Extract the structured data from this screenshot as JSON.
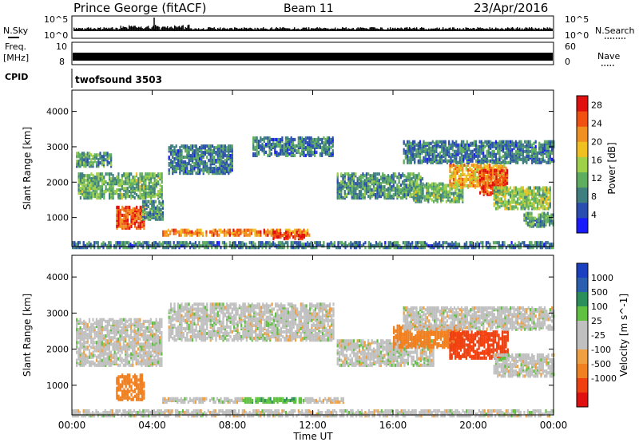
{
  "header": {
    "title": "Prince George (fitACF)",
    "beam": "Beam 11",
    "date": "23/Apr/2016"
  },
  "panels": {
    "nsky": {
      "label": "N.Sky",
      "left_ticks": [
        "10^5",
        "10^0"
      ]
    },
    "nsearch": {
      "label": "N.Search",
      "right_ticks": [
        "10^5",
        "10^0"
      ]
    },
    "freq": {
      "label_top": "Freq.",
      "label_unit": "[MHz]",
      "left_ticks": [
        "10",
        "8"
      ]
    },
    "nave": {
      "label": "Nave",
      "right_ticks": [
        "60",
        "0"
      ]
    },
    "cpid": {
      "label": "CPID",
      "value": "twofsound 3503"
    }
  },
  "colors": {
    "power_scale": [
      "#1a1aff",
      "#2a4db0",
      "#3f7f7f",
      "#5fae5f",
      "#9fd04a",
      "#f0c020",
      "#f09020",
      "#f05010",
      "#e01010"
    ],
    "velocity_scale": [
      "#e01010",
      "#f04010",
      "#f08020",
      "#f0a040",
      "#c0c0c0",
      "#c0c0c0",
      "#60c040",
      "#2a8f5a",
      "#2a5fb0",
      "#1a3fc0"
    ],
    "ground_scatter": "#b8b8b8"
  },
  "chart_data": [
    {
      "type": "heatmap",
      "panel": "power",
      "ylabel": "Slant Range [km]",
      "xlabel": "Time UT",
      "x_ticks": [
        "00:00",
        "04:00",
        "08:00",
        "12:00",
        "16:00",
        "20:00",
        "00:00"
      ],
      "xlim_hours": [
        0,
        24
      ],
      "ylim_km": [
        180,
        4600
      ],
      "y_ticks": [
        1000,
        2000,
        3000,
        4000
      ],
      "colorbar": {
        "label": "Power [dB]",
        "ticks": [
          4,
          8,
          12,
          16,
          20,
          24,
          28
        ],
        "range": [
          0,
          30
        ]
      },
      "regions": [
        {
          "t0": 0.2,
          "t1": 2.0,
          "r0": 2500,
          "r1": 2900,
          "value": 10
        },
        {
          "t0": 0.3,
          "t1": 4.5,
          "r0": 1600,
          "r1": 2300,
          "value": 12
        },
        {
          "t0": 2.2,
          "t1": 3.6,
          "r0": 750,
          "r1": 1350,
          "value": 25
        },
        {
          "t0": 3.5,
          "t1": 4.5,
          "r0": 1000,
          "r1": 1500,
          "value": 10
        },
        {
          "t0": 4.5,
          "t1": 11.8,
          "r0": 550,
          "r1": 700,
          "value": 22
        },
        {
          "t0": 10.0,
          "t1": 11.6,
          "r0": 450,
          "r1": 650,
          "value": 28
        },
        {
          "t0": 4.8,
          "t1": 8.0,
          "r0": 2300,
          "r1": 3100,
          "value": 8
        },
        {
          "t0": 9.0,
          "t1": 13.0,
          "r0": 2800,
          "r1": 3300,
          "value": 8
        },
        {
          "t0": 13.2,
          "t1": 17.5,
          "r0": 1600,
          "r1": 2300,
          "value": 10
        },
        {
          "t0": 17.0,
          "t1": 19.5,
          "r0": 1500,
          "r1": 2000,
          "value": 12
        },
        {
          "t0": 18.8,
          "t1": 21.6,
          "r0": 1900,
          "r1": 2550,
          "value": 20
        },
        {
          "t0": 20.3,
          "t1": 21.7,
          "r0": 1700,
          "r1": 2400,
          "value": 26
        },
        {
          "t0": 21.0,
          "t1": 23.8,
          "r0": 1300,
          "r1": 1900,
          "value": 14
        },
        {
          "t0": 22.5,
          "t1": 24.0,
          "r0": 800,
          "r1": 1200,
          "value": 10
        },
        {
          "t0": 16.5,
          "t1": 24.0,
          "r0": 2600,
          "r1": 3200,
          "value": 8
        },
        {
          "t0": 0.0,
          "t1": 24.0,
          "r0": 200,
          "r1": 350,
          "value": 8
        }
      ]
    },
    {
      "type": "heatmap",
      "panel": "velocity",
      "ylabel": "Slant Range [km]",
      "xlabel": "Time UT",
      "x_ticks": [
        "00:00",
        "04:00",
        "08:00",
        "12:00",
        "16:00",
        "20:00",
        "00:00"
      ],
      "xlim_hours": [
        0,
        24
      ],
      "ylim_km": [
        180,
        4600
      ],
      "y_ticks": [
        1000,
        2000,
        3000,
        4000
      ],
      "colorbar": {
        "label": "Velocity [m s^-1]",
        "tick_labels": [
          "1000",
          "500",
          "100",
          "25",
          "-25",
          "-100",
          "-500",
          "-1000"
        ]
      },
      "regions": [
        {
          "t0": 0.2,
          "t1": 4.5,
          "r0": 1600,
          "r1": 2900,
          "value": 0
        },
        {
          "t0": 2.2,
          "t1": 3.6,
          "r0": 650,
          "r1": 1350,
          "value": -200
        },
        {
          "t0": 4.5,
          "t1": 8.5,
          "r0": 580,
          "r1": 700,
          "value": 0
        },
        {
          "t0": 8.5,
          "t1": 11.5,
          "r0": 580,
          "r1": 700,
          "value": 80
        },
        {
          "t0": 11.5,
          "t1": 13.5,
          "r0": 580,
          "r1": 700,
          "value": 0
        },
        {
          "t0": 4.8,
          "t1": 13.0,
          "r0": 2300,
          "r1": 3300,
          "value": 0
        },
        {
          "t0": 13.2,
          "t1": 18.0,
          "r0": 1600,
          "r1": 2300,
          "value": 0
        },
        {
          "t0": 16.0,
          "t1": 19.5,
          "r0": 2100,
          "r1": 2700,
          "value": -200
        },
        {
          "t0": 18.8,
          "t1": 21.7,
          "r0": 1800,
          "r1": 2550,
          "value": -600
        },
        {
          "t0": 21.0,
          "t1": 24.0,
          "r0": 1300,
          "r1": 1900,
          "value": 0
        },
        {
          "t0": 16.5,
          "t1": 24.0,
          "r0": 2600,
          "r1": 3200,
          "value": 0
        },
        {
          "t0": 0.0,
          "t1": 24.0,
          "r0": 200,
          "r1": 350,
          "value": 0
        }
      ]
    }
  ]
}
